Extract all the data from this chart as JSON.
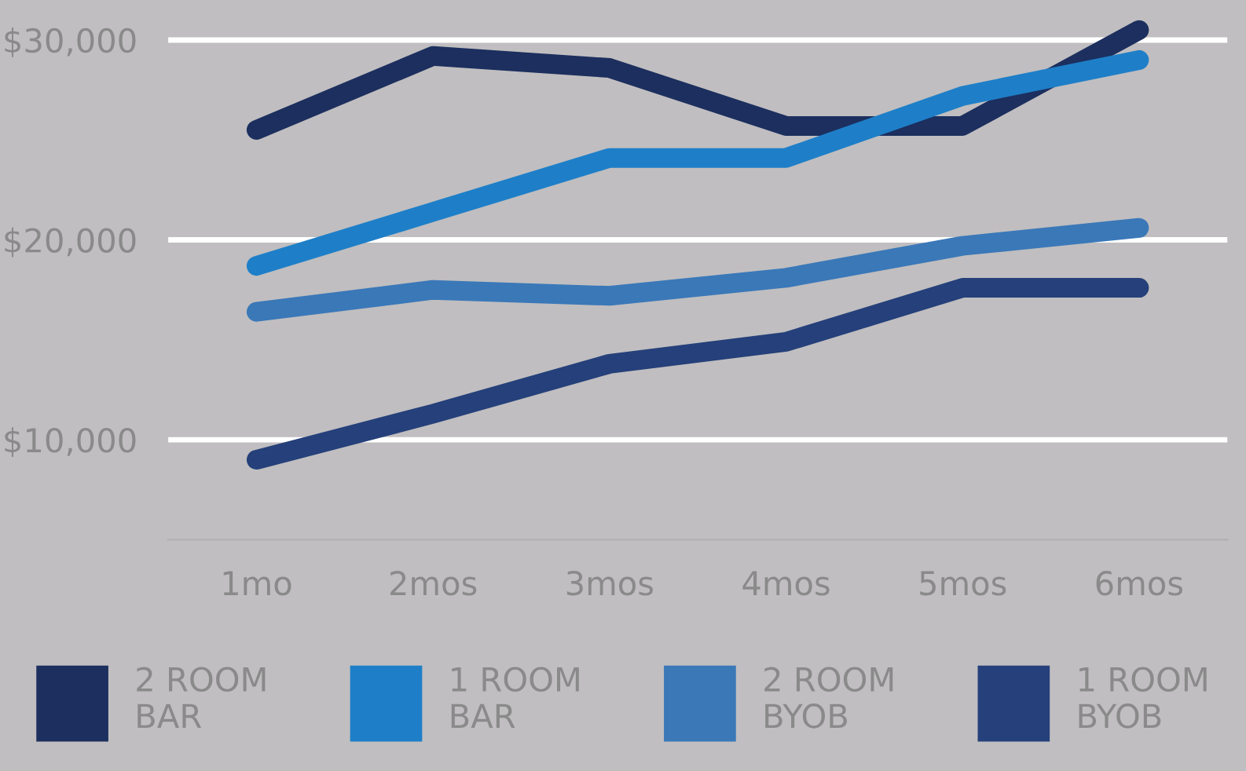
{
  "chart_data": {
    "type": "line",
    "categories": [
      "1mo",
      "2mos",
      "3mos",
      "4mos",
      "5mos",
      "6mos"
    ],
    "series": [
      {
        "name": "2 ROOM\nBAR",
        "color": "#1c2f5e",
        "values": [
          25500,
          29200,
          28600,
          25700,
          25700,
          30500
        ]
      },
      {
        "name": "1 ROOM\nBAR",
        "color": "#1e7fc8",
        "values": [
          18700,
          21400,
          24100,
          24100,
          27200,
          29000
        ]
      },
      {
        "name": "2 ROOM\nBYOB",
        "color": "#3a78b8",
        "values": [
          16400,
          17500,
          17200,
          18100,
          19700,
          20600
        ]
      },
      {
        "name": "1 ROOM\nBYOB",
        "color": "#25407a",
        "values": [
          9000,
          11300,
          13800,
          14900,
          17600,
          17600
        ]
      }
    ],
    "ylim": [
      5000,
      32000
    ],
    "yticks": [
      {
        "value": 10000,
        "label": "$10,000"
      },
      {
        "value": 20000,
        "label": "$20,000"
      },
      {
        "value": 30000,
        "label": "$30,000"
      }
    ],
    "grid": "y",
    "legend": "bottom",
    "line_style": "solid"
  }
}
